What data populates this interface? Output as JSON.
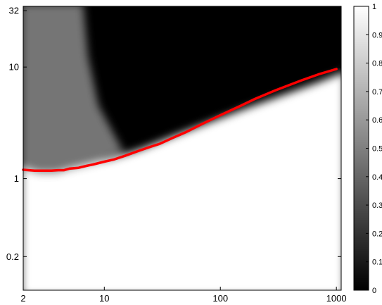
{
  "chart_data": {
    "type": "heatmap",
    "title": "",
    "xlabel": "",
    "ylabel": "",
    "x_scale": "log",
    "y_scale": "log",
    "xlim": [
      2,
      1100
    ],
    "ylim": [
      0.1,
      35
    ],
    "grid": false,
    "x_ticks": [
      {
        "value": 2,
        "label": "2"
      },
      {
        "value": 10,
        "label": "10"
      },
      {
        "value": 100,
        "label": "100"
      },
      {
        "value": 1000,
        "label": "1000"
      }
    ],
    "y_ticks": [
      {
        "value": 32,
        "label": "32"
      },
      {
        "value": 10,
        "label": "10"
      },
      {
        "value": 1,
        "label": "1"
      },
      {
        "value": 0.2,
        "label": "0.2"
      }
    ],
    "colorbar": {
      "range": [
        0,
        1
      ],
      "colormap": "gray",
      "low_color": "#000000",
      "high_color": "#ffffff",
      "ticks": [
        {
          "value": 0,
          "label": "0"
        },
        {
          "value": 0.1,
          "label": "0.1"
        },
        {
          "value": 0.2,
          "label": "0.2"
        },
        {
          "value": 0.3,
          "label": "0.3"
        },
        {
          "value": 0.4,
          "label": "0.4"
        },
        {
          "value": 0.5,
          "label": "0.5"
        },
        {
          "value": 0.6,
          "label": "0.6"
        },
        {
          "value": 0.7,
          "label": "0.7"
        },
        {
          "value": 0.8,
          "label": "0.8"
        },
        {
          "value": 0.9,
          "label": "0.9"
        },
        {
          "value": 1,
          "label": "1"
        }
      ]
    },
    "heatmap_regions": [
      {
        "region": "upper-left (small x, large y)",
        "value_range": [
          0.2,
          0.55
        ]
      },
      {
        "region": "upper-right (large x, above curve)",
        "value": 0.0
      },
      {
        "region": "below red curve",
        "value": 1.0
      }
    ],
    "series": [
      {
        "color": "#ff0000",
        "x": [
          2,
          2.5,
          3,
          3.5,
          4,
          4.5,
          5,
          6,
          7,
          8,
          10,
          12,
          15,
          20,
          25,
          30,
          40,
          50,
          70,
          100,
          150,
          200,
          300,
          500,
          700,
          1000
        ],
        "y": [
          1.2,
          1.18,
          1.18,
          1.18,
          1.19,
          1.19,
          1.23,
          1.25,
          1.3,
          1.34,
          1.42,
          1.48,
          1.6,
          1.78,
          1.93,
          2.05,
          2.35,
          2.6,
          3.1,
          3.7,
          4.5,
          5.2,
          6.2,
          7.6,
          8.6,
          9.6
        ]
      }
    ]
  }
}
